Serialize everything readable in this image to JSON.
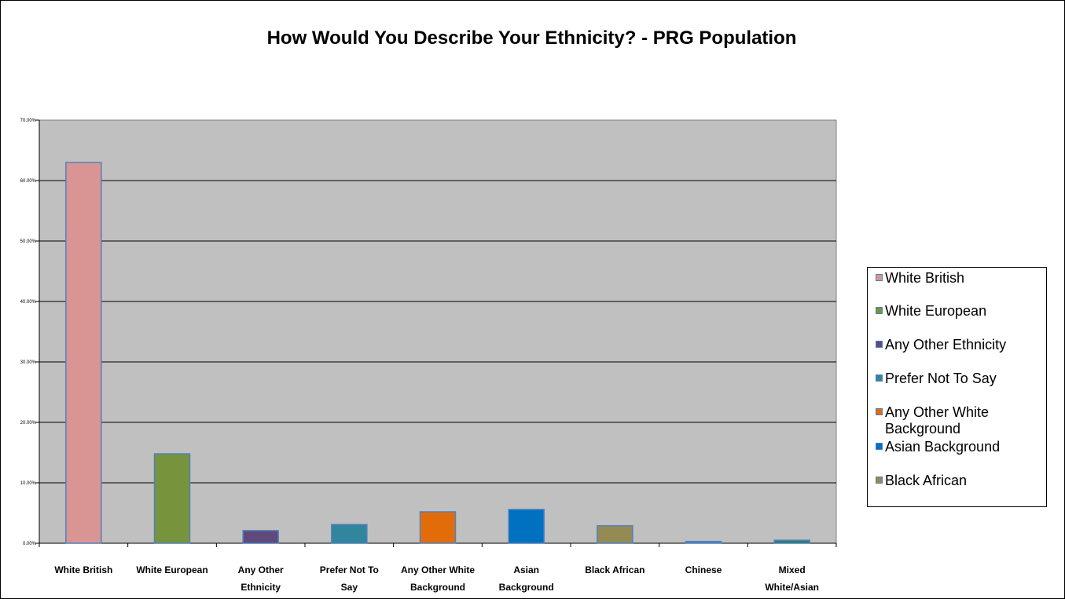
{
  "chart_data": {
    "type": "bar",
    "title": "How Would You Describe Your Ethnicity? - PRG Population",
    "categories": [
      "White British",
      "White European",
      "Any Other Ethnicity",
      "Prefer Not To Say",
      "Any Other White Background",
      "Asian Background",
      "Black African",
      "Chinese",
      "Mixed White/Asian"
    ],
    "category_labels": [
      [
        "White British"
      ],
      [
        "White European"
      ],
      [
        "Any Other",
        "Ethnicity"
      ],
      [
        "Prefer Not To",
        "Say"
      ],
      [
        "Any Other White",
        "Background"
      ],
      [
        "Asian",
        "Background"
      ],
      [
        "Black African"
      ],
      [
        "Chinese"
      ],
      [
        "Mixed",
        "White/Asian"
      ]
    ],
    "values": [
      63.0,
      14.8,
      2.1,
      3.1,
      5.2,
      5.6,
      2.9,
      0.3,
      0.5
    ],
    "colors": [
      "#d99594",
      "#77933c",
      "#604a7b",
      "#31859c",
      "#e36c0a",
      "#0070c0",
      "#948a54",
      "#4f81bd",
      "#2f7f5f"
    ],
    "ylim": [
      0,
      70
    ],
    "yticks": [
      "0.00%",
      "10.00%",
      "20.00%",
      "30.00%",
      "40.00%",
      "50.00%",
      "60.00%",
      "70.00%"
    ],
    "grid": true,
    "plot_background": "#c0c0c0",
    "bar_outline": "#4f81bd",
    "legend": {
      "placement": "right",
      "entries": [
        "White British",
        "White European",
        "Any Other Ethnicity",
        "Prefer Not To Say",
        "Any Other White Background",
        "Asian Background",
        "Black African"
      ]
    }
  }
}
